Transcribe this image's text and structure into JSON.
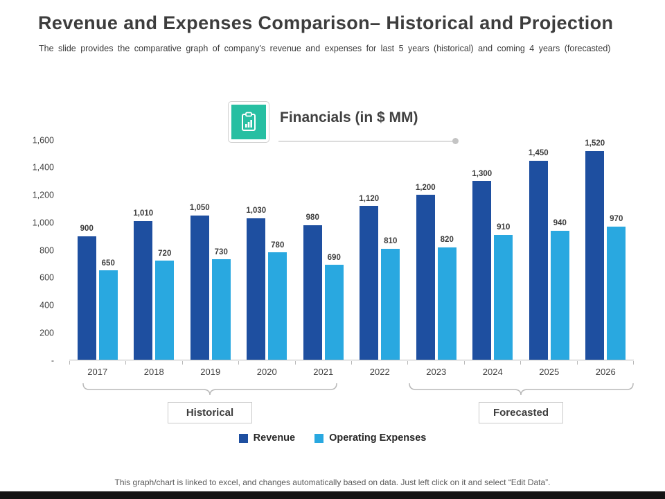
{
  "header": {
    "title": "Revenue and Expenses Comparison– Historical and Projection",
    "subtitle": "The slide provides the comparative graph of company’s revenue and expenses for last 5 years (historical) and coming 4 years (forecasted)"
  },
  "chart_data": {
    "type": "bar",
    "title": "Financials (in $ MM)",
    "categories": [
      "2017",
      "2018",
      "2019",
      "2020",
      "2021",
      "2022",
      "2023",
      "2024",
      "2025",
      "2026"
    ],
    "series": [
      {
        "name": "Revenue",
        "color": "#1e4fa0",
        "values": [
          900,
          1010,
          1050,
          1030,
          980,
          1120,
          1200,
          1300,
          1450,
          1520
        ]
      },
      {
        "name": "Operating Expenses",
        "color": "#29a8e0",
        "values": [
          650,
          720,
          730,
          780,
          690,
          810,
          820,
          910,
          940,
          970
        ]
      }
    ],
    "ylim": [
      0,
      1600
    ],
    "ytick_step": 200,
    "ytick_labels": [
      "-",
      "200",
      "400",
      "600",
      "800",
      "1,000",
      "1,200",
      "1,400",
      "1,600"
    ],
    "grid": false,
    "legend_position": "bottom",
    "data_labels": true
  },
  "brackets": [
    {
      "label": "Historical"
    },
    {
      "label": "Forecasted"
    }
  ],
  "footer": {
    "note": "This graph/chart is linked to excel, and changes automatically based on data. Just left click on it and select “Edit Data”."
  },
  "accent_colors": {
    "revenue": "#1e4fa0",
    "operating_expenses": "#29a8e0",
    "icon_teal": "#27bfa2"
  }
}
